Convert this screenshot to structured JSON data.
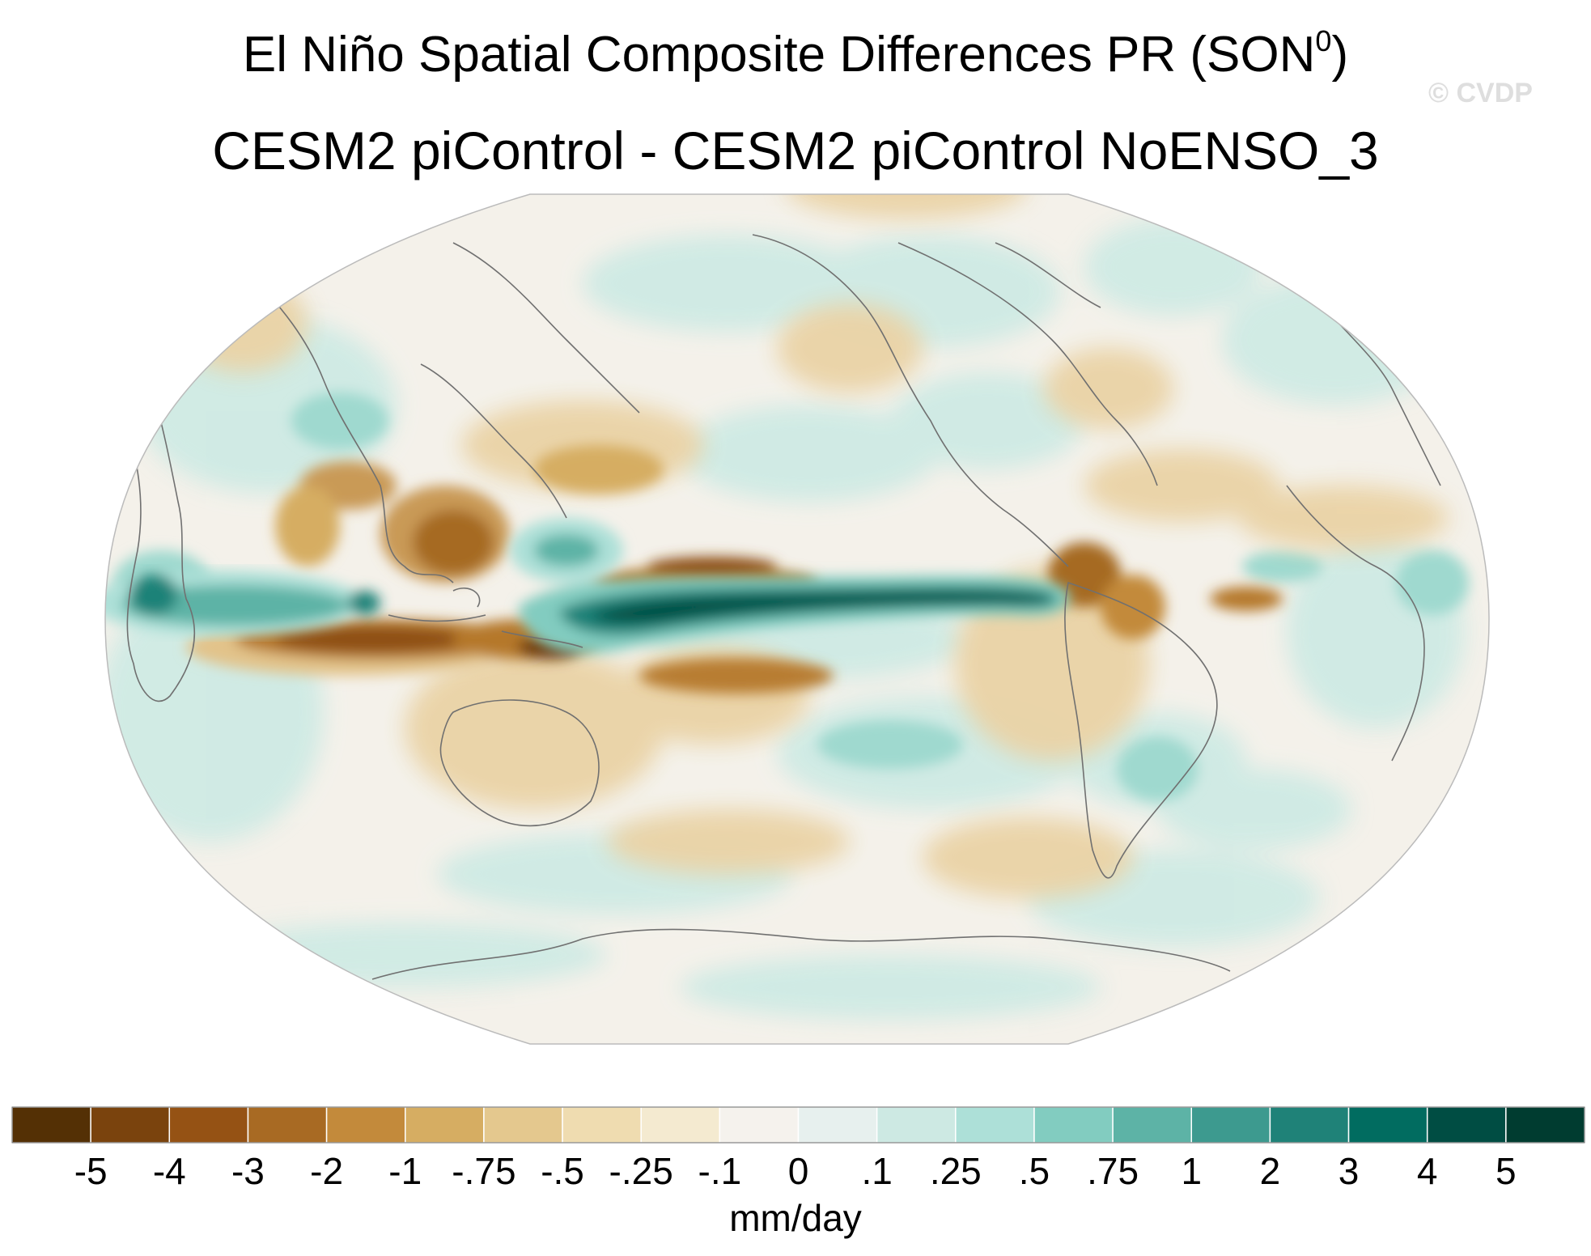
{
  "title": {
    "main_prefix": "El Niño Spatial Composite Differences PR (SON",
    "main_superscript": "0",
    "main_suffix": ")",
    "subtitle": "CESM2 piControl - CESM2 piControl NoENSO_3"
  },
  "watermark": "© CVDP",
  "map": {
    "projection": "Robinson",
    "variable": "PR",
    "season": "SON",
    "background_color": "#f4f1ea",
    "coastline_color": "#6f6f6f"
  },
  "colorbar": {
    "units": "mm/day",
    "ticks": [
      "-5",
      "-4",
      "-3",
      "-2",
      "-1",
      "-.75",
      "-.5",
      "-.25",
      "-.1",
      "0",
      ".1",
      ".25",
      ".5",
      ".75",
      "1",
      "2",
      "3",
      "4",
      "5"
    ],
    "colors": [
      "#543005",
      "#7a430d",
      "#955214",
      "#a86a23",
      "#c38a3b",
      "#d6ad62",
      "#e4c88e",
      "#efdcb0",
      "#f4ead0",
      "#f5f2ed",
      "#e7f0ee",
      "#cde9e3",
      "#ade0d8",
      "#82ccc0",
      "#5db3a6",
      "#3d9a8f",
      "#1f8278",
      "#016c60",
      "#004d43",
      "#003c30"
    ]
  }
}
